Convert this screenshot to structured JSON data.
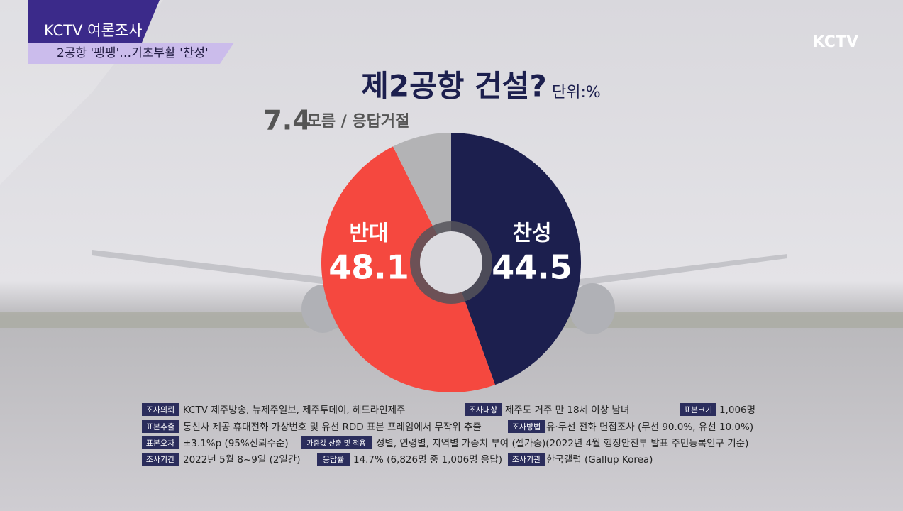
{
  "header": {
    "program": "KCTV 여론조사",
    "headline": "2공항 '팽팽'…기초부활 '찬성'",
    "logo": "KCTV"
  },
  "chart_data": {
    "type": "pie",
    "title": "제2공항 건설?",
    "subtitle": "단위:%",
    "categories": [
      "찬성",
      "반대",
      "모름 / 응답거절"
    ],
    "values": [
      44.5,
      48.1,
      7.4
    ],
    "colors": [
      "#1c1f4e",
      "#f5483f",
      "#b3b3b5"
    ],
    "donut": true
  },
  "survey_info": [
    [
      {
        "label": "조사의뢰",
        "text": "KCTV 제주방송, 뉴제주일보, 제주투데이, 헤드라인제주"
      },
      {
        "label": "조사대상",
        "text": "제주도 거주 만 18세 이상 남녀"
      },
      {
        "label": "표본크기",
        "text": "1,006명"
      }
    ],
    [
      {
        "label": "표본추출",
        "text": "통신사 제공 휴대전화 가상번호 및 유선 RDD 표본 프레임에서 무작위 추출"
      },
      {
        "label": "조사방법",
        "text": "유·무선 전화 면접조사 (무선 90.0%, 유선 10.0%)"
      }
    ],
    [
      {
        "label": "표본오차",
        "text": "±3.1%p (95%신뢰수준)"
      },
      {
        "label": "가중값 산출 및 적용",
        "text": "성별, 연령별, 지역별 가중치 부여 (셀가중)(2022년 4월 행정안전부 발표 주민등록인구 기준)"
      }
    ],
    [
      {
        "label": "조사기간",
        "text": "2022년 5월 8~9일 (2일간)"
      },
      {
        "label": "응답률",
        "text": "14.7% (6,826명 중 1,006명 응답)"
      },
      {
        "label": "조사기관",
        "text": "한국갤럽 (Gallup Korea)"
      }
    ]
  ]
}
